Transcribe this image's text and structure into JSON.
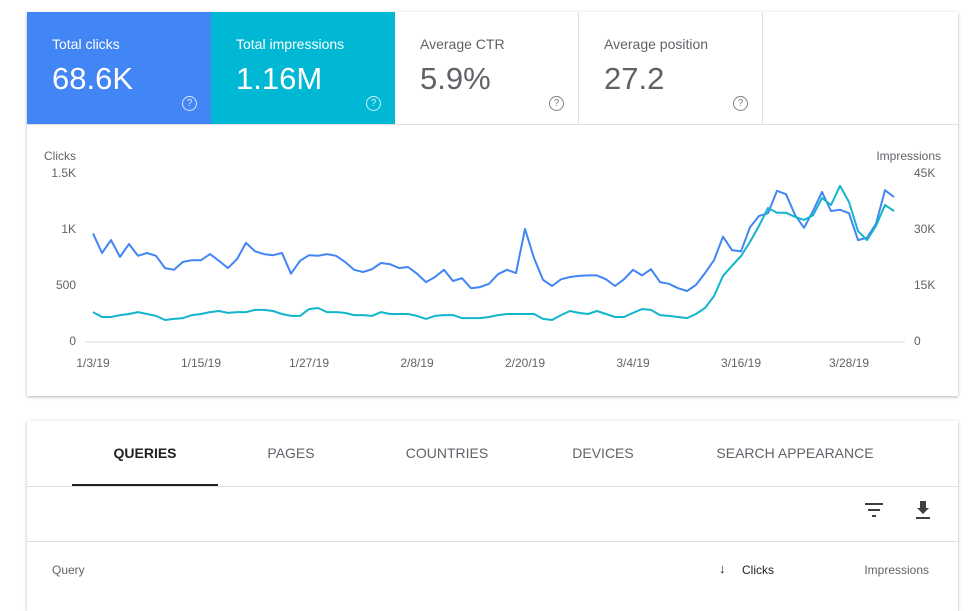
{
  "metrics": [
    {
      "label": "Total clicks",
      "value": "68.6K"
    },
    {
      "label": "Total impressions",
      "value": "1.16M"
    },
    {
      "label": "Average CTR",
      "value": "5.9%"
    },
    {
      "label": "Average position",
      "value": "27.2"
    }
  ],
  "chart_data": {
    "type": "line",
    "y_label": "Clicks",
    "y2_label": "Impressions",
    "x": [
      "1/3/19",
      "1/4/19",
      "1/5/19",
      "1/6/19",
      "1/7/19",
      "1/8/19",
      "1/9/19",
      "1/10/19",
      "1/11/19",
      "1/12/19",
      "1/13/19",
      "1/14/19",
      "1/15/19",
      "1/16/19",
      "1/17/19",
      "1/18/19",
      "1/19/19",
      "1/20/19",
      "1/21/19",
      "1/22/19",
      "1/23/19",
      "1/24/19",
      "1/25/19",
      "1/26/19",
      "1/27/19",
      "1/28/19",
      "1/29/19",
      "1/30/19",
      "1/31/19",
      "2/1/19",
      "2/2/19",
      "2/3/19",
      "2/4/19",
      "2/5/19",
      "2/6/19",
      "2/7/19",
      "2/8/19",
      "2/9/19",
      "2/10/19",
      "2/11/19",
      "2/12/19",
      "2/13/19",
      "2/14/19",
      "2/15/19",
      "2/16/19",
      "2/17/19",
      "2/18/19",
      "2/19/19",
      "2/20/19",
      "2/21/19",
      "2/22/19",
      "2/23/19",
      "2/24/19",
      "2/25/19",
      "2/26/19",
      "2/27/19",
      "2/28/19",
      "3/1/19",
      "3/2/19",
      "3/3/19",
      "3/4/19",
      "3/5/19",
      "3/6/19",
      "3/7/19",
      "3/8/19",
      "3/9/19",
      "3/10/19",
      "3/11/19",
      "3/12/19",
      "3/13/19",
      "3/14/19",
      "3/15/19",
      "3/16/19",
      "3/17/19",
      "3/18/19",
      "3/19/19",
      "3/20/19",
      "3/21/19",
      "3/22/19",
      "3/23/19",
      "3/24/19",
      "3/25/19",
      "3/26/19",
      "3/27/19",
      "3/28/19",
      "3/29/19",
      "3/30/19",
      "3/31/19",
      "4/1/19",
      "4/2/19"
    ],
    "xticks": [
      "1/3/19",
      "1/15/19",
      "1/27/19",
      "2/8/19",
      "2/20/19",
      "3/4/19",
      "3/16/19",
      "3/28/19"
    ],
    "ylim": [
      0,
      1500
    ],
    "yticks": [
      {
        "value": 1500,
        "label": "1.5K"
      },
      {
        "value": 1000,
        "label": "1K"
      },
      500,
      0
    ],
    "y2lim": [
      0,
      45000
    ],
    "y2ticks": [
      {
        "value": 45000,
        "label": "45K"
      },
      {
        "value": 30000,
        "label": "30K"
      },
      {
        "value": 15000,
        "label": "15K"
      },
      0
    ],
    "series": [
      {
        "name": "Clicks",
        "color": "#4285f4",
        "values": [
          970,
          795,
          910,
          760,
          875,
          770,
          795,
          770,
          660,
          645,
          715,
          730,
          730,
          785,
          725,
          660,
          740,
          885,
          810,
          785,
          775,
          795,
          610,
          725,
          775,
          770,
          785,
          770,
          715,
          645,
          625,
          650,
          705,
          695,
          660,
          670,
          610,
          535,
          580,
          645,
          545,
          570,
          480,
          490,
          520,
          605,
          645,
          615,
          1010,
          750,
          555,
          500,
          560,
          580,
          590,
          595,
          595,
          560,
          500,
          560,
          645,
          595,
          650,
          535,
          520,
          480,
          455,
          510,
          615,
          730,
          940,
          820,
          810,
          1025,
          1125,
          1150,
          1350,
          1320,
          1135,
          1020,
          1170,
          1340,
          1170,
          1180,
          1150,
          910,
          930,
          1055,
          1355,
          1295
        ]
      },
      {
        "name": "Impressions",
        "color": "#12b5cb",
        "axis": "y2",
        "values": [
          8000,
          6700,
          6700,
          7200,
          7500,
          8000,
          7500,
          7000,
          5900,
          6200,
          6400,
          7200,
          7500,
          8000,
          8300,
          7800,
          8000,
          8000,
          8600,
          8600,
          8300,
          7500,
          7000,
          7000,
          8800,
          9100,
          8000,
          8000,
          7800,
          7200,
          7200,
          7000,
          8000,
          7500,
          7500,
          7500,
          7000,
          6200,
          7000,
          7200,
          7200,
          6400,
          6400,
          6400,
          6700,
          7200,
          7500,
          7500,
          7500,
          7500,
          6200,
          5900,
          7200,
          8300,
          7800,
          7500,
          8300,
          7500,
          6700,
          6700,
          7800,
          8800,
          8600,
          7200,
          7000,
          6700,
          6400,
          7500,
          9100,
          12300,
          17700,
          20400,
          23000,
          26800,
          31100,
          35900,
          34600,
          34600,
          33500,
          32700,
          33900,
          38600,
          36700,
          41800,
          37500,
          29700,
          27300,
          31100,
          36700,
          35100
        ]
      }
    ]
  },
  "tabs": [
    "QUERIES",
    "PAGES",
    "COUNTRIES",
    "DEVICES",
    "SEARCH APPEARANCE"
  ],
  "table": {
    "columns": [
      "Query",
      "Clicks",
      "Impressions"
    ]
  }
}
